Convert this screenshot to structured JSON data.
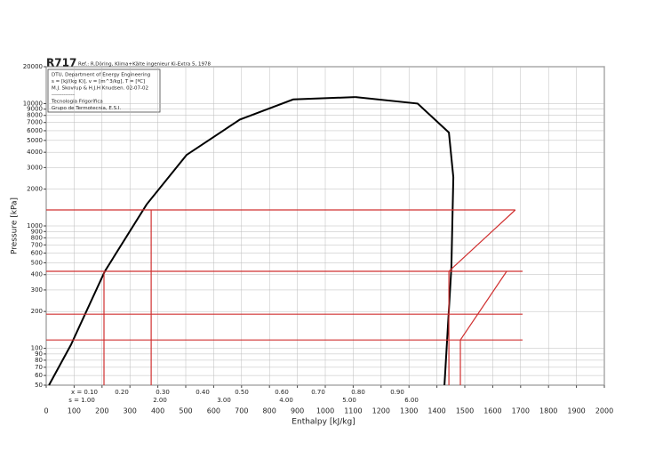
{
  "chart_data": {
    "type": "line",
    "title": "R717",
    "subtitle": "Ref.: R.Döring, Klima+Kälte ingenieur Ki-Extra 5, 1978",
    "info_box": [
      "DTU, Department of Energy Engineering",
      "s = [kJ/(kg K)], v = [m^3/kg], T = [ºC]",
      "M.J. Skovrup & H.J.H Knudsen. 02-07-02",
      "-------------",
      "Tecnologia Frigorífica",
      "Grupo de Termotecnia, E.S.I."
    ],
    "x_label": "Enthalpy [kJ/kg]",
    "y_label": "Pressure [kPa]",
    "xlim": [
      0,
      2000
    ],
    "xticks": [
      0,
      100,
      200,
      300,
      400,
      500,
      600,
      700,
      800,
      900,
      1000,
      1100,
      1200,
      1300,
      1400,
      1500,
      1600,
      1700,
      1800,
      1900,
      2000
    ],
    "ylim": [
      50,
      20000
    ],
    "yticks": [
      50,
      60,
      70,
      80,
      90,
      100,
      200,
      300,
      400,
      500,
      600,
      700,
      800,
      900,
      1000,
      2000,
      3000,
      4000,
      5000,
      6000,
      7000,
      8000,
      9000,
      10000,
      20000
    ],
    "log_y": true,
    "grid": true,
    "series": [
      {
        "color": "#000000",
        "x": [
          10,
          89,
          210,
          360,
          503,
          694,
          885,
          1108
        ],
        "values": [
          50,
          107,
          425,
          1500,
          3800,
          7400,
          10800,
          11300
        ]
      },
      {
        "color": "#000000",
        "x": [
          1108,
          1331,
          1443,
          1459,
          1452,
          1427
        ],
        "values": [
          11300,
          10000,
          5800,
          2500,
          460,
          50
        ]
      },
      {
        "color": "#d03030",
        "x": [
          0,
          1681
        ],
        "values": [
          1352,
          1352
        ]
      },
      {
        "color": "#d03030",
        "x": [
          0,
          1707
        ],
        "values": [
          426,
          426
        ]
      },
      {
        "color": "#d03030",
        "x": [
          0,
          1707
        ],
        "values": [
          190,
          190
        ]
      },
      {
        "color": "#d03030",
        "x": [
          0,
          1707
        ],
        "values": [
          117,
          117
        ]
      },
      {
        "color": "#d03030",
        "x": [
          207,
          207
        ],
        "values": [
          426,
          50
        ]
      },
      {
        "color": "#d03030",
        "x": [
          376,
          376
        ],
        "values": [
          1352,
          50
        ]
      },
      {
        "color": "#d03030",
        "x": [
          1443,
          1443,
          1681
        ],
        "values": [
          50,
          426,
          1352
        ]
      },
      {
        "color": "#d03030",
        "x": [
          1484,
          1484,
          1650
        ],
        "values": [
          50,
          117,
          426
        ]
      }
    ],
    "quality_labels": [
      "x = 0.10",
      "0.20",
      "0.30",
      "0.40",
      "0.50",
      "0.60",
      "0.70",
      "0.80",
      "0.90"
    ],
    "entropy_labels": [
      "s = 1.00",
      "2.00",
      "3.00",
      "4.00",
      "5.00",
      "6.00"
    ]
  }
}
